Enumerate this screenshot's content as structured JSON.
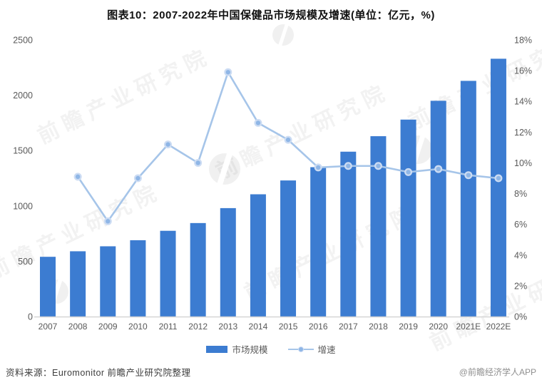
{
  "title": "图表10：2007-2022年中国保健品市场规模及增速(单位：亿元，%)",
  "watermark": {
    "text": "前瞻产业研究院"
  },
  "chart_data": {
    "type": "bar+line",
    "title": "图表10：2007-2022年中国保健品市场规模及增速(单位：亿元，%)",
    "unit_left": "亿元",
    "unit_right": "%",
    "categories": [
      "2007",
      "2008",
      "2009",
      "2010",
      "2011",
      "2012",
      "2013",
      "2014",
      "2015",
      "2016",
      "2017",
      "2018",
      "2019",
      "2020",
      "2021E",
      "2022E"
    ],
    "series": [
      {
        "name": "市场规模",
        "type": "bar",
        "axis": "left",
        "values": [
          540,
          590,
          635,
          690,
          775,
          845,
          980,
          1105,
          1230,
          1350,
          1490,
          1630,
          1780,
          1950,
          2130,
          2330
        ]
      },
      {
        "name": "增速",
        "type": "line",
        "axis": "right",
        "values": [
          null,
          9.1,
          6.2,
          9.0,
          11.2,
          10.0,
          15.9,
          12.6,
          11.5,
          9.7,
          9.8,
          9.8,
          9.4,
          9.6,
          9.2,
          9.0
        ]
      }
    ],
    "y_left": {
      "min": 0,
      "max": 2500,
      "step": 500,
      "ticks": [
        "0",
        "500",
        "1000",
        "1500",
        "2000",
        "2500"
      ]
    },
    "y_right": {
      "min": 0,
      "max": 18,
      "step": 2,
      "ticks": [
        "0%",
        "2%",
        "4%",
        "6%",
        "8%",
        "10%",
        "12%",
        "14%",
        "16%",
        "18%"
      ]
    },
    "grid": false,
    "legend_position": "bottom"
  },
  "legend": {
    "items": [
      {
        "label": "市场规模",
        "type": "bar"
      },
      {
        "label": "增速",
        "type": "line"
      }
    ]
  },
  "footer": {
    "source": "资料来源：Euromonitor 前瞻产业研究院整理",
    "credit": "@前瞻经济学人APP"
  },
  "colors": {
    "bar": "#3c7cd1",
    "line": "#a6c5e9",
    "marker_inner": "#8fb6e6",
    "marker_ring": "#ccdcf3",
    "axis_text": "#595959",
    "baseline": "#d6d6d6",
    "title_text": "#111111",
    "source_text": "#3d3d3d",
    "credit_text": "#8f8f8f"
  }
}
